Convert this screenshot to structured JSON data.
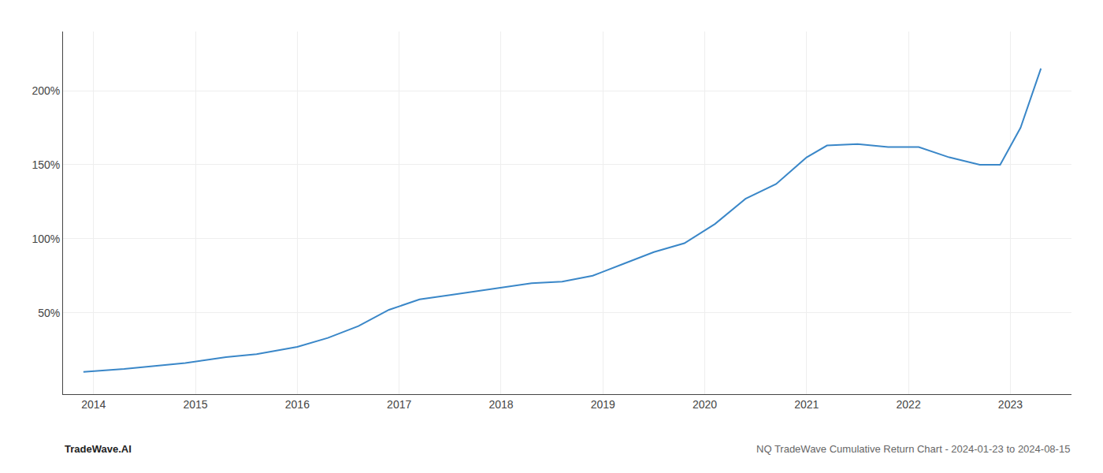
{
  "chart_data": {
    "type": "line",
    "x": [
      2013.9,
      2014.1,
      2014.3,
      2014.6,
      2014.9,
      2015.1,
      2015.3,
      2015.6,
      2016.0,
      2016.3,
      2016.6,
      2016.9,
      2017.2,
      2017.5,
      2017.8,
      2018.1,
      2018.3,
      2018.6,
      2018.9,
      2019.2,
      2019.5,
      2019.8,
      2020.1,
      2020.4,
      2020.7,
      2021.0,
      2021.2,
      2021.5,
      2021.8,
      2022.1,
      2022.4,
      2022.7,
      2022.9,
      2023.1,
      2023.3
    ],
    "values": [
      10,
      11,
      12,
      14,
      16,
      18,
      20,
      22,
      27,
      33,
      41,
      52,
      59,
      62,
      65,
      68,
      70,
      71,
      75,
      83,
      91,
      97,
      110,
      127,
      137,
      155,
      163,
      164,
      162,
      162,
      155,
      150,
      150,
      175,
      215
    ],
    "color": "#3a87c8",
    "xlim": [
      2013.7,
      2023.6
    ],
    "xticks": [
      2014,
      2015,
      2016,
      2017,
      2018,
      2019,
      2020,
      2021,
      2022,
      2023
    ],
    "ylim": [
      -5,
      240
    ],
    "yticks": [
      {
        "value": 50,
        "label": "50%"
      },
      {
        "value": 100,
        "label": "100%"
      },
      {
        "value": 150,
        "label": "150%"
      },
      {
        "value": 200,
        "label": "200%"
      }
    ],
    "grid": true,
    "annotations": [
      "TradeWave.AI",
      "NQ TradeWave Cumulative Return Chart - 2024-01-23 to 2024-08-15"
    ]
  }
}
